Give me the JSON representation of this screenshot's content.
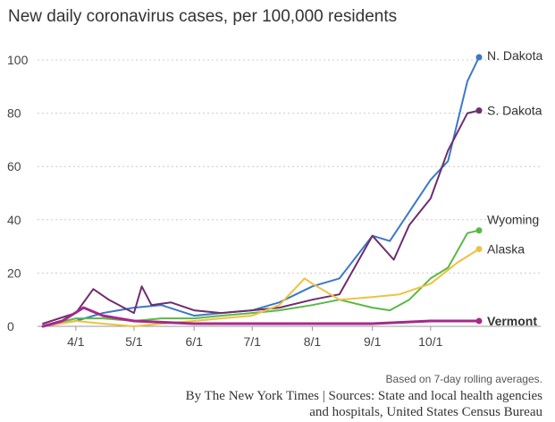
{
  "chart_data": {
    "type": "line",
    "title": "New daily coronavirus cases, per 100,000 residents",
    "xlabel": "",
    "ylabel": "",
    "ylim": [
      0,
      110
    ],
    "yticks": [
      "0",
      "20",
      "40",
      "60",
      "80",
      "100"
    ],
    "xlim": [
      "2020-03-15",
      "2020-10-26"
    ],
    "xticks": [
      {
        "date": "2020-04-01",
        "label": "4/1"
      },
      {
        "date": "2020-05-01",
        "label": "5/1"
      },
      {
        "date": "2020-06-01",
        "label": "6/1"
      },
      {
        "date": "2020-07-01",
        "label": "7/1"
      },
      {
        "date": "2020-08-01",
        "label": "8/1"
      },
      {
        "date": "2020-09-01",
        "label": "9/1"
      },
      {
        "date": "2020-10-01",
        "label": "10/1"
      }
    ],
    "grid": true,
    "legend": "direct labels at line ends",
    "series": [
      {
        "name": "N. Dakota",
        "color": "#3b79c6",
        "bold": false,
        "x": [
          "2020-03-15",
          "2020-04-01",
          "2020-04-15",
          "2020-05-01",
          "2020-05-15",
          "2020-06-01",
          "2020-06-15",
          "2020-07-01",
          "2020-07-15",
          "2020-08-01",
          "2020-08-15",
          "2020-09-01",
          "2020-09-10",
          "2020-09-20",
          "2020-10-01",
          "2020-10-10",
          "2020-10-20",
          "2020-10-26"
        ],
        "y": [
          0,
          2,
          5,
          7,
          8,
          4,
          5,
          6,
          9,
          15,
          18,
          34,
          32,
          43,
          55,
          62,
          92,
          101
        ]
      },
      {
        "name": "S. Dakota",
        "color": "#6e2e6e",
        "bold": false,
        "x": [
          "2020-03-15",
          "2020-04-01",
          "2020-04-10",
          "2020-04-18",
          "2020-05-01",
          "2020-05-05",
          "2020-05-10",
          "2020-05-20",
          "2020-06-01",
          "2020-06-15",
          "2020-07-01",
          "2020-07-15",
          "2020-08-01",
          "2020-08-15",
          "2020-09-01",
          "2020-09-12",
          "2020-09-20",
          "2020-10-01",
          "2020-10-10",
          "2020-10-20",
          "2020-10-26"
        ],
        "y": [
          1,
          5,
          14,
          10,
          5,
          15,
          8,
          9,
          6,
          5,
          6,
          7,
          10,
          12,
          34,
          25,
          38,
          48,
          66,
          80,
          81
        ]
      },
      {
        "name": "Wyoming",
        "color": "#5ab946",
        "bold": false,
        "x": [
          "2020-03-15",
          "2020-04-01",
          "2020-04-15",
          "2020-05-01",
          "2020-05-15",
          "2020-06-01",
          "2020-06-15",
          "2020-07-01",
          "2020-07-15",
          "2020-08-01",
          "2020-08-15",
          "2020-09-01",
          "2020-09-10",
          "2020-09-20",
          "2020-10-01",
          "2020-10-10",
          "2020-10-20",
          "2020-10-26"
        ],
        "y": [
          0,
          3,
          3,
          2,
          3,
          3,
          4,
          5,
          6,
          8,
          10,
          7,
          6,
          10,
          18,
          22,
          35,
          36
        ]
      },
      {
        "name": "Alaska",
        "color": "#f0c040",
        "bold": false,
        "x": [
          "2020-03-15",
          "2020-04-01",
          "2020-04-15",
          "2020-05-01",
          "2020-05-15",
          "2020-06-01",
          "2020-06-15",
          "2020-07-01",
          "2020-07-15",
          "2020-07-28",
          "2020-08-01",
          "2020-08-15",
          "2020-09-01",
          "2020-09-15",
          "2020-10-01",
          "2020-10-15",
          "2020-10-26"
        ],
        "y": [
          0,
          2,
          1,
          0,
          1,
          2,
          3,
          4,
          8,
          18,
          16,
          10,
          11,
          12,
          16,
          24,
          29
        ]
      },
      {
        "name": "Vermont",
        "color": "#a52a8c",
        "bold": true,
        "x": [
          "2020-03-15",
          "2020-03-25",
          "2020-04-05",
          "2020-04-15",
          "2020-05-01",
          "2020-06-01",
          "2020-07-01",
          "2020-08-01",
          "2020-09-01",
          "2020-10-01",
          "2020-10-26"
        ],
        "y": [
          0,
          2,
          7,
          4,
          2,
          1,
          1,
          1,
          1,
          2,
          2
        ]
      }
    ]
  },
  "footer": {
    "note": "Based on 7-day rolling averages.",
    "credit": "By The New York Times | Sources: State and local health agencies and hospitals, United States Census Bureau"
  }
}
